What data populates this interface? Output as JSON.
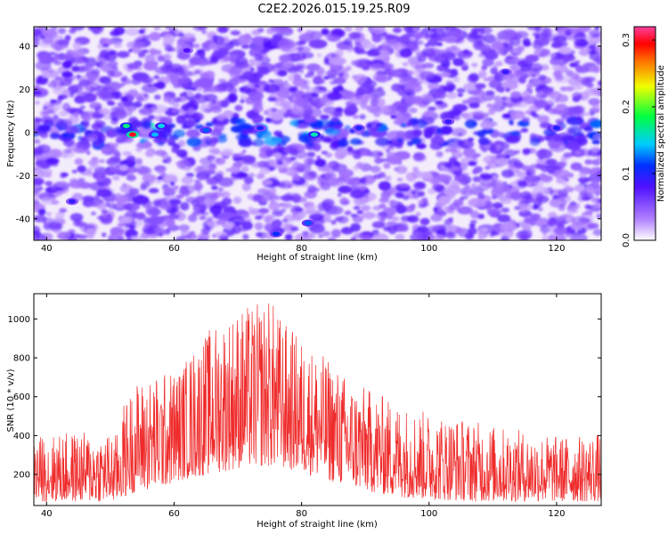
{
  "title": "C2E2.2026.015.19.25.R09",
  "chart_data": [
    {
      "type": "heatmap",
      "xlabel": "Height of straight line (km)",
      "ylabel": "Frequency (Hz)",
      "xlim": [
        38,
        127
      ],
      "ylim": [
        -50,
        49
      ],
      "xticks": [
        40,
        60,
        80,
        100,
        120
      ],
      "yticks": [
        -40,
        -20,
        0,
        20,
        40
      ],
      "colorbar": {
        "label": "Normalized spectral amplitude",
        "range": [
          0.0,
          0.32
        ],
        "ticks": [
          "0.0",
          "0.1",
          "0.2",
          "0.3"
        ],
        "colormap": "white-purple-blue-cyan-green-yellow-red-magenta"
      },
      "features": [
        {
          "x": 53.5,
          "y": -1,
          "value": 0.3
        },
        {
          "x": 52.5,
          "y": 3,
          "value": 0.17
        },
        {
          "x": 58,
          "y": 3,
          "value": 0.15
        },
        {
          "x": 57,
          "y": -1,
          "value": 0.14
        },
        {
          "x": 65,
          "y": 1,
          "value": 0.12
        },
        {
          "x": 73.5,
          "y": 2,
          "value": 0.1
        },
        {
          "x": 82,
          "y": -1,
          "value": 0.16
        },
        {
          "x": 89,
          "y": 2,
          "value": 0.1
        },
        {
          "x": 103,
          "y": 5,
          "value": 0.09
        },
        {
          "x": 120,
          "y": 2,
          "value": 0.1
        },
        {
          "x": 112,
          "y": 28,
          "value": 0.09
        },
        {
          "x": 62,
          "y": 38,
          "value": 0.08
        },
        {
          "x": 81,
          "y": -42,
          "value": 0.12
        },
        {
          "x": 76,
          "y": -47,
          "value": 0.11
        },
        {
          "x": 44,
          "y": -32,
          "value": 0.09
        }
      ]
    },
    {
      "type": "line",
      "xlabel": "Height of straight line (km)",
      "ylabel": "SNR (10 * v/v)",
      "xlim": [
        38,
        127
      ],
      "ylim": [
        40,
        1130
      ],
      "xticks": [
        40,
        60,
        80,
        100,
        120
      ],
      "yticks": [
        200,
        400,
        600,
        800,
        1000
      ],
      "series": [
        {
          "color": "#ef2b2b",
          "envelope_x": [
            38,
            45,
            51,
            52,
            54,
            58,
            61,
            64,
            67,
            70,
            73,
            75,
            77,
            80,
            84,
            88,
            92,
            96,
            100,
            104,
            108,
            112,
            116,
            120,
            124,
            127
          ],
          "envelope_low": [
            60,
            60,
            60,
            80,
            110,
            130,
            170,
            190,
            210,
            230,
            240,
            240,
            230,
            210,
            170,
            130,
            100,
            80,
            70,
            65,
            60,
            60,
            60,
            60,
            60,
            60
          ],
          "envelope_high": [
            400,
            420,
            410,
            560,
            680,
            720,
            760,
            900,
            1000,
            1060,
            1080,
            1120,
            1000,
            900,
            800,
            680,
            620,
            560,
            520,
            500,
            470,
            440,
            420,
            400,
            400,
            420
          ]
        }
      ]
    }
  ]
}
